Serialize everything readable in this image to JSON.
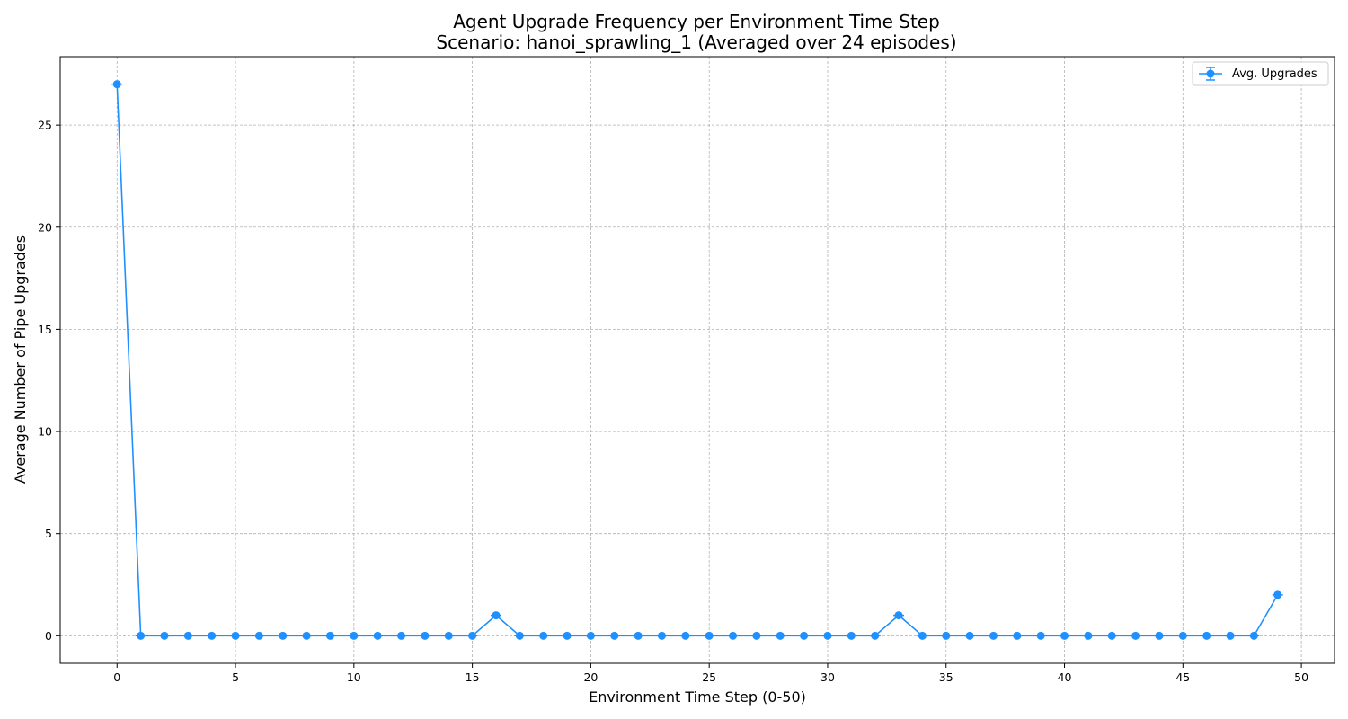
{
  "chart_data": {
    "type": "line",
    "title_line1": "Agent Upgrade Frequency per Environment Time Step",
    "title_line2": "Scenario: hanoi_sprawling_1 (Averaged over 24 episodes)",
    "xlabel": "Environment Time Step (0-50)",
    "ylabel": "Average Number of Pipe Upgrades",
    "xlim": [
      -2.4,
      51.4
    ],
    "ylim": [
      -1.35,
      28.35
    ],
    "xticks": [
      0,
      5,
      10,
      15,
      20,
      25,
      30,
      35,
      40,
      45,
      50
    ],
    "yticks": [
      0,
      5,
      10,
      15,
      20,
      25
    ],
    "grid": true,
    "legend_position": "top-right",
    "color": "#1e90ff",
    "series": [
      {
        "name": "Avg. Upgrades",
        "x": [
          0,
          1,
          2,
          3,
          4,
          5,
          6,
          7,
          8,
          9,
          10,
          11,
          12,
          13,
          14,
          15,
          16,
          17,
          18,
          19,
          20,
          21,
          22,
          23,
          24,
          25,
          26,
          27,
          28,
          29,
          30,
          31,
          32,
          33,
          34,
          35,
          36,
          37,
          38,
          39,
          40,
          41,
          42,
          43,
          44,
          45,
          46,
          47,
          48,
          49
        ],
        "y": [
          27,
          0,
          0,
          0,
          0,
          0,
          0,
          0,
          0,
          0,
          0,
          0,
          0,
          0,
          0,
          0,
          1,
          0,
          0,
          0,
          0,
          0,
          0,
          0,
          0,
          0,
          0,
          0,
          0,
          0,
          0,
          0,
          0,
          1,
          0,
          0,
          0,
          0,
          0,
          0,
          0,
          0,
          0,
          0,
          0,
          0,
          0,
          0,
          0,
          2
        ]
      }
    ]
  }
}
